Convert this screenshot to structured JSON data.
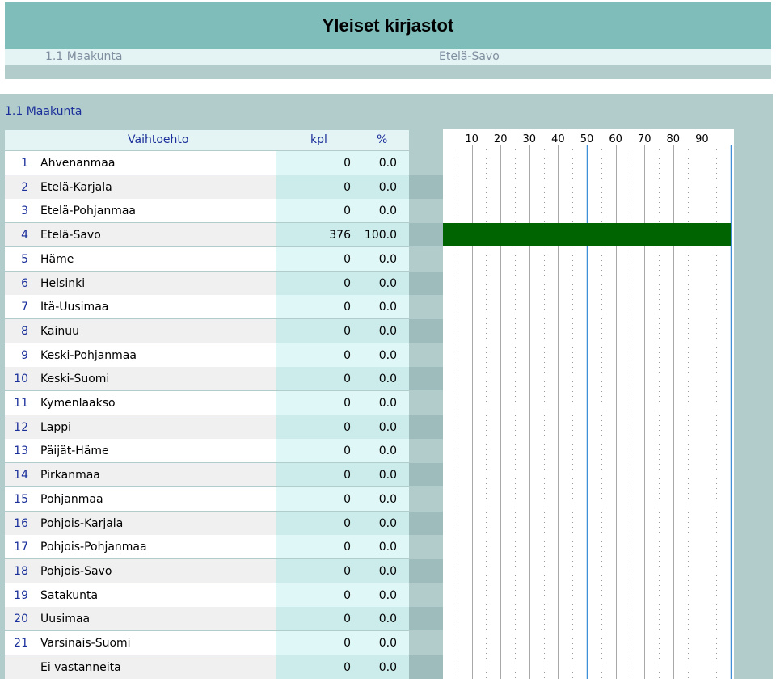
{
  "header": {
    "title": "Yleiset kirjastot",
    "subtitle_left": "1.1 Maakunta",
    "subtitle_right": "Etelä-Savo"
  },
  "section_title": "1.1 Maakunta",
  "colors": {
    "accent_bar": "#006400",
    "title_bg": "#7fbdbb",
    "panel_bg": "#b2cccc",
    "number_text": "#1a2f9a",
    "gridline_major": "#3f8fd6",
    "gridline_minor": "#a8a8a8"
  },
  "chart_data": {
    "type": "table",
    "columns": [
      "",
      "Vaihtoehto",
      "kpl",
      "%"
    ],
    "axis_ticks": [
      "10",
      "20",
      "30",
      "40",
      "50",
      "60",
      "70",
      "80",
      "90"
    ],
    "xlim": [
      0,
      100
    ],
    "rows": [
      {
        "num": "1",
        "label": "Ahvenanmaa",
        "kpl": "0",
        "pct": "0.0",
        "value": 0
      },
      {
        "num": "2",
        "label": "Etelä-Karjala",
        "kpl": "0",
        "pct": "0.0",
        "value": 0
      },
      {
        "num": "3",
        "label": "Etelä-Pohjanmaa",
        "kpl": "0",
        "pct": "0.0",
        "value": 0
      },
      {
        "num": "4",
        "label": "Etelä-Savo",
        "kpl": "376",
        "pct": "100.0",
        "value": 100
      },
      {
        "num": "5",
        "label": "Häme",
        "kpl": "0",
        "pct": "0.0",
        "value": 0
      },
      {
        "num": "6",
        "label": "Helsinki",
        "kpl": "0",
        "pct": "0.0",
        "value": 0
      },
      {
        "num": "7",
        "label": "Itä-Uusimaa",
        "kpl": "0",
        "pct": "0.0",
        "value": 0
      },
      {
        "num": "8",
        "label": "Kainuu",
        "kpl": "0",
        "pct": "0.0",
        "value": 0
      },
      {
        "num": "9",
        "label": "Keski-Pohjanmaa",
        "kpl": "0",
        "pct": "0.0",
        "value": 0
      },
      {
        "num": "10",
        "label": "Keski-Suomi",
        "kpl": "0",
        "pct": "0.0",
        "value": 0
      },
      {
        "num": "11",
        "label": "Kymenlaakso",
        "kpl": "0",
        "pct": "0.0",
        "value": 0
      },
      {
        "num": "12",
        "label": "Lappi",
        "kpl": "0",
        "pct": "0.0",
        "value": 0
      },
      {
        "num": "13",
        "label": "Päijät-Häme",
        "kpl": "0",
        "pct": "0.0",
        "value": 0
      },
      {
        "num": "14",
        "label": "Pirkanmaa",
        "kpl": "0",
        "pct": "0.0",
        "value": 0
      },
      {
        "num": "15",
        "label": "Pohjanmaa",
        "kpl": "0",
        "pct": "0.0",
        "value": 0
      },
      {
        "num": "16",
        "label": "Pohjois-Karjala",
        "kpl": "0",
        "pct": "0.0",
        "value": 0
      },
      {
        "num": "17",
        "label": "Pohjois-Pohjanmaa",
        "kpl": "0",
        "pct": "0.0",
        "value": 0
      },
      {
        "num": "18",
        "label": "Pohjois-Savo",
        "kpl": "0",
        "pct": "0.0",
        "value": 0
      },
      {
        "num": "19",
        "label": "Satakunta",
        "kpl": "0",
        "pct": "0.0",
        "value": 0
      },
      {
        "num": "20",
        "label": "Uusimaa",
        "kpl": "0",
        "pct": "0.0",
        "value": 0
      },
      {
        "num": "21",
        "label": "Varsinais-Suomi",
        "kpl": "0",
        "pct": "0.0",
        "value": 0
      },
      {
        "num": "",
        "label": "Ei vastanneita",
        "kpl": "0",
        "pct": "0.0",
        "value": 0
      }
    ]
  }
}
